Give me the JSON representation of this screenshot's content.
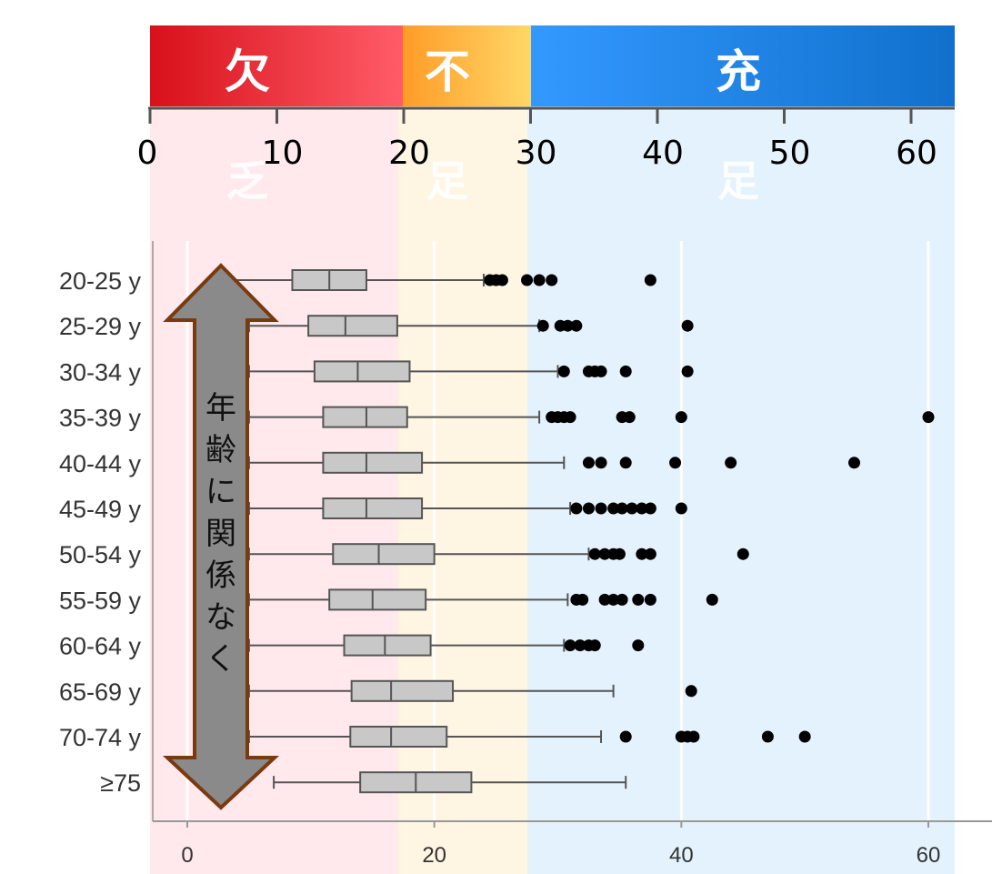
{
  "header": {
    "bands": [
      {
        "label": "欠",
        "sub": "乏",
        "from": 0,
        "to": 20
      },
      {
        "label": "不",
        "sub": "足",
        "from": 20,
        "to": 30
      },
      {
        "label": "充",
        "sub": "足",
        "from": 30,
        "to": 63
      }
    ],
    "ticks": [
      "0",
      "10",
      "20",
      "30",
      "40",
      "50",
      "60"
    ]
  },
  "colors": {
    "band_red": "#e0161f",
    "band_orange": "#ffae3a",
    "band_blue": "#2a8ae8",
    "bg_red": "#ffe9ec",
    "bg_orange": "#fff5e3",
    "bg_blue": "#e4f2fd",
    "box_fill": "#c8c8c8",
    "arrow_fill": "#8a8a8a",
    "arrow_stroke": "#7a3a10"
  },
  "annotation": {
    "chars": [
      "年",
      "齢",
      "に",
      "関",
      "係",
      "な",
      "く"
    ]
  },
  "chart_data": {
    "type": "box",
    "orientation": "horizontal",
    "xlim": [
      -3,
      63
    ],
    "x_ticks": [
      "0",
      "20",
      "40",
      "60"
    ],
    "grid": true,
    "categories": [
      "20-25 y",
      "25-29 y",
      "30-34 y",
      "35-39 y",
      "40-44 y",
      "45-49 y",
      "50-54 y",
      "55-59 y",
      "60-64 y",
      "65-69 y",
      "70-74 y",
      "≥75"
    ],
    "boxes": [
      {
        "min": 2,
        "q1": 8.5,
        "median": 11.5,
        "q3": 14.5,
        "max": 24,
        "outliers": [
          24.5,
          25,
          25.5,
          27.5,
          28.5,
          29.5,
          37.5
        ]
      },
      {
        "min": 5,
        "q1": 9.8,
        "median": 12.8,
        "q3": 17,
        "max": 28.5,
        "outliers": [
          28.8,
          30.2,
          30.8,
          31.5,
          40.5
        ]
      },
      {
        "min": 5,
        "q1": 10.3,
        "median": 13.8,
        "q3": 18,
        "max": 30,
        "outliers": [
          30.5,
          32.5,
          33,
          33.5,
          35.5,
          40.5
        ]
      },
      {
        "min": 5,
        "q1": 11,
        "median": 14.5,
        "q3": 17.8,
        "max": 28.5,
        "outliers": [
          29.5,
          30,
          30.5,
          31,
          35.2,
          35.8,
          40,
          60
        ]
      },
      {
        "min": 5,
        "q1": 11,
        "median": 14.5,
        "q3": 19,
        "max": 30.5,
        "outliers": [
          32.5,
          33.5,
          35.5,
          39.5,
          44,
          54
        ]
      },
      {
        "min": 5,
        "q1": 11,
        "median": 14.5,
        "q3": 19,
        "max": 31,
        "outliers": [
          31.5,
          32.5,
          33.5,
          34.5,
          35.2,
          36,
          36.8,
          37.5,
          40
        ]
      },
      {
        "min": 5,
        "q1": 11.8,
        "median": 15.5,
        "q3": 20,
        "max": 32.5,
        "outliers": [
          33,
          33.8,
          34.5,
          35,
          36.8,
          37.5,
          45
        ]
      },
      {
        "min": 5,
        "q1": 11.5,
        "median": 15,
        "q3": 19.3,
        "max": 30.8,
        "outliers": [
          31.5,
          32,
          33.8,
          34.5,
          35.2,
          36.5,
          37.5,
          42.5
        ]
      },
      {
        "min": 5,
        "q1": 12.7,
        "median": 16,
        "q3": 19.7,
        "max": 30.5,
        "outliers": [
          31,
          31.8,
          32.5,
          33,
          36.5
        ]
      },
      {
        "min": 5,
        "q1": 13.3,
        "median": 16.5,
        "q3": 21.5,
        "max": 34.5,
        "outliers": [
          40.8
        ]
      },
      {
        "min": 5,
        "q1": 13.2,
        "median": 16.5,
        "q3": 21,
        "max": 33.5,
        "outliers": [
          35.5,
          40,
          40.5,
          41,
          47,
          50
        ]
      },
      {
        "min": 7,
        "q1": 14,
        "median": 18.5,
        "q3": 23,
        "max": 35.5,
        "outliers": []
      }
    ]
  }
}
